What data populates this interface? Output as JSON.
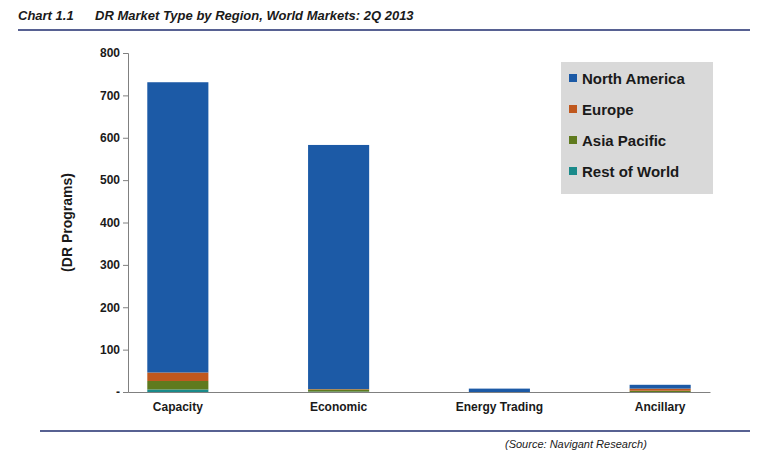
{
  "chart_data": {
    "type": "bar",
    "title": "DR Market Type by Region, World Markets: 2Q 2013",
    "annotations": [
      "Chart 1.1",
      "(Source: Navigant Research)"
    ],
    "y_label": "(DR Programs)",
    "categories": [
      "Capacity",
      "Economic",
      "Energy Trading",
      "Ancillary"
    ],
    "series": [
      {
        "name": "North America",
        "color": "#1c5aa6",
        "values": [
          685,
          576,
          8,
          9
        ]
      },
      {
        "name": "Europe",
        "color": "#c0581e",
        "values": [
          20,
          1,
          0,
          5
        ]
      },
      {
        "name": "Asia Pacific",
        "color": "#5f7a1e",
        "values": [
          20,
          5,
          0,
          3
        ]
      },
      {
        "name": "Rest of World",
        "color": "#1a8a8a",
        "values": [
          6,
          1,
          0,
          0
        ]
      }
    ],
    "ylim": [
      0,
      800
    ],
    "yticks": [
      {
        "value": 0,
        "label": "-"
      },
      100,
      200,
      300,
      400,
      500,
      600,
      700,
      800
    ],
    "stacked": true,
    "legend": "top-right",
    "grid": false
  }
}
